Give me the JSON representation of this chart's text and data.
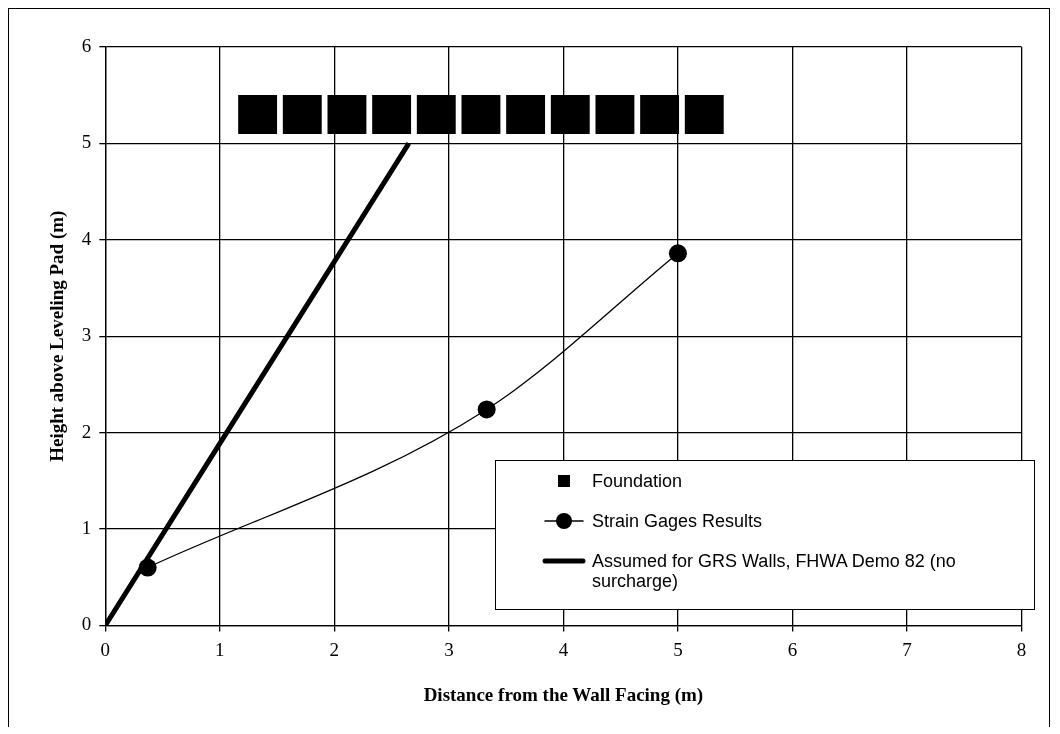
{
  "chart_data": {
    "type": "line",
    "xlabel": "Distance from the Wall Facing (m)",
    "ylabel": "Height above Leveling Pad (m)",
    "xlim": [
      0,
      8
    ],
    "xticks": [
      0,
      1,
      2,
      3,
      4,
      5,
      6,
      7,
      8
    ],
    "ylim": [
      0,
      6
    ],
    "yticks": [
      0,
      1,
      2,
      3,
      4,
      5,
      6
    ],
    "grid": true,
    "legend": "bottom right",
    "series": [
      {
        "name": "Foundation",
        "type": "scatter",
        "marker": "square",
        "color": "#000000",
        "x": [
          1.33,
          1.72,
          2.11,
          2.5,
          2.89,
          3.28,
          3.67,
          4.06,
          4.45,
          4.84,
          5.23
        ],
        "values": [
          5.3,
          5.3,
          5.3,
          5.3,
          5.3,
          5.3,
          5.3,
          5.3,
          5.3,
          5.3,
          5.3
        ]
      },
      {
        "name": "Strain Gages Results",
        "type": "line",
        "marker": "circle",
        "color": "#000000",
        "x": [
          0.37,
          3.33,
          5.0
        ],
        "values": [
          0.6,
          2.24,
          3.86
        ]
      },
      {
        "name": "Assumed for GRS Walls, FHWA Demo 82 (no surcharge)",
        "type": "line",
        "marker": "none",
        "color": "#000000",
        "x": [
          0,
          2.65
        ],
        "values": [
          0,
          5.0
        ]
      }
    ]
  }
}
